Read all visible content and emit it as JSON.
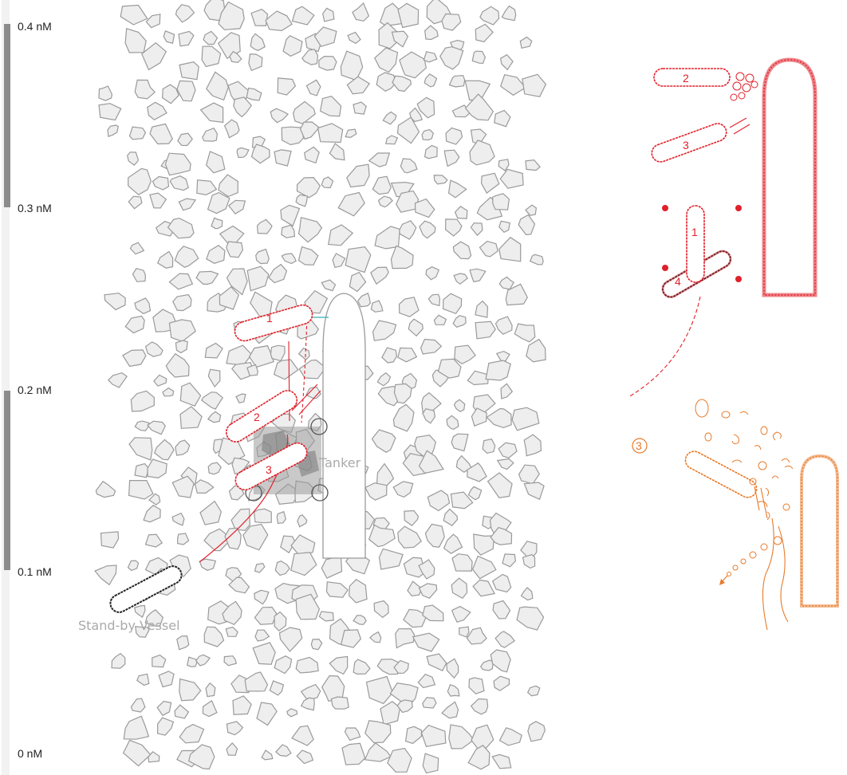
{
  "scale": {
    "ticks": [
      "0.4 nM",
      "0.3 nM",
      "0.2 nM",
      "0.1 nM",
      "0 nM"
    ]
  },
  "labels": {
    "tanker": "Tanker",
    "standby": "Stand-by Vessel"
  },
  "main_sequence": {
    "vessels": [
      "1",
      "2",
      "3"
    ]
  },
  "inset_top": {
    "vessels": [
      "2",
      "3",
      "1",
      "4"
    ]
  },
  "inset_bottom": {
    "step": "3"
  },
  "colors": {
    "red": "#e0202a",
    "orange": "#e87a2a",
    "ice_fill": "#eeeeee",
    "ice_stroke": "#9a9a9a",
    "scale_bar": "#8c8c8c"
  }
}
